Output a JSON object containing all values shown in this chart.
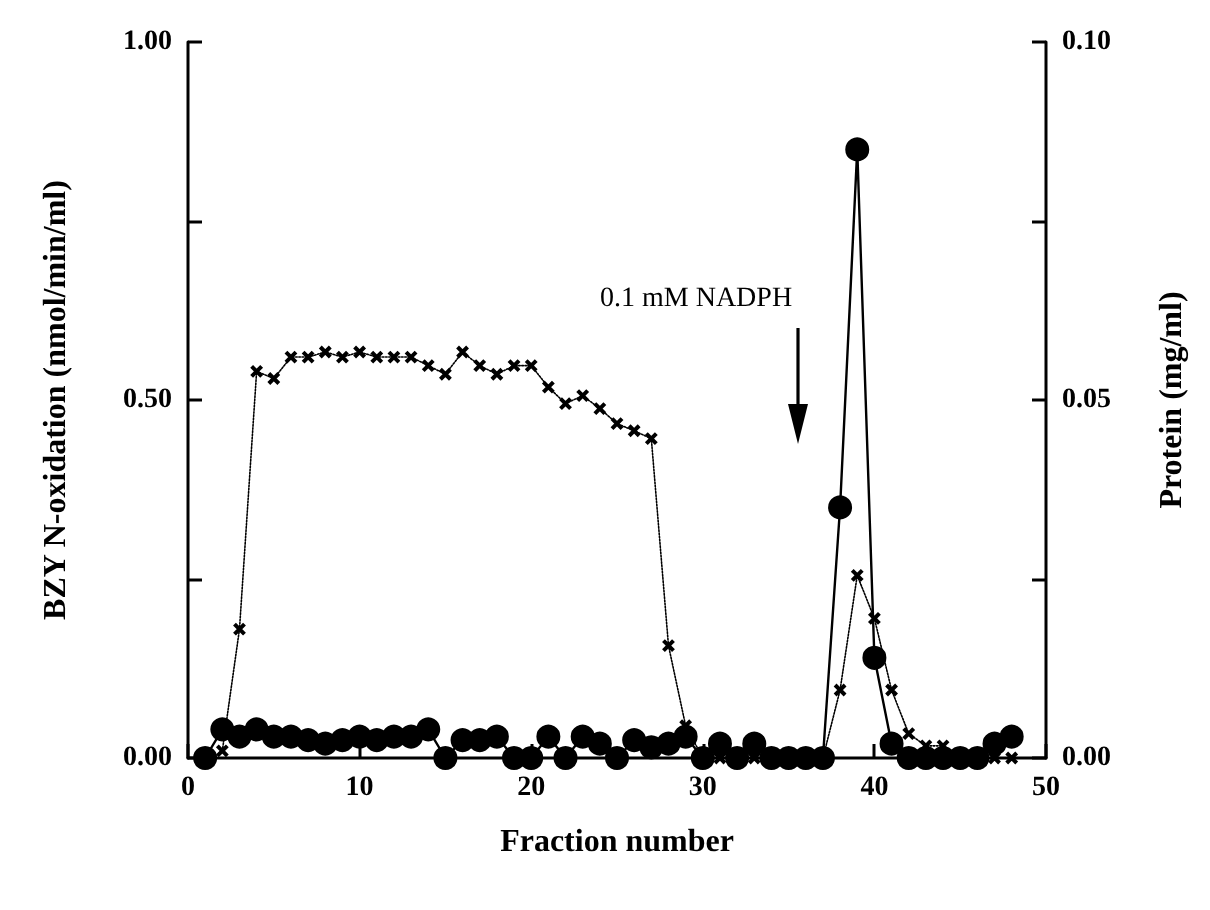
{
  "chart_data": {
    "type": "line",
    "xlabel": "Fraction number",
    "ylabel": "BZY N-oxidation (nmol/min/ml)",
    "y2label": "Protein (mg/ml)",
    "annotations": [
      "0.1 mM NADPH"
    ],
    "xlim": [
      0,
      50
    ],
    "xticks": [
      0,
      10,
      20,
      30,
      40,
      50
    ],
    "ylim": [
      0,
      1
    ],
    "yticks": [
      {
        "value": 0,
        "label": "0.00"
      },
      {
        "value": 0.25,
        "label": null
      },
      {
        "value": 0.5,
        "label": "0.50"
      },
      {
        "value": 0.75,
        "label": null
      },
      {
        "value": 1,
        "label": "1.00"
      }
    ],
    "y2lim": [
      0,
      0.1
    ],
    "y2ticks": [
      {
        "value": 0,
        "label": "0.00"
      },
      {
        "value": 0.025,
        "label": null
      },
      {
        "value": 0.05,
        "label": "0.05"
      },
      {
        "value": 0.075,
        "label": null
      },
      {
        "value": 0.1,
        "label": "0.10"
      }
    ],
    "series": [
      {
        "color": "#000000",
        "marker": "cross",
        "line_style": "dotted",
        "x": [
          2,
          3,
          4,
          5,
          6,
          7,
          8,
          9,
          10,
          11,
          12,
          13,
          14,
          15,
          16,
          17,
          18,
          19,
          20,
          21,
          22,
          23,
          24,
          25,
          26,
          27,
          28,
          29,
          30,
          31,
          32,
          33,
          34,
          35,
          36,
          37,
          38,
          39,
          40,
          41,
          42,
          43,
          44,
          45,
          46,
          47,
          48
        ],
        "values": [
          0.01,
          0.18,
          0.54,
          0.53,
          0.56,
          0.56,
          0.567,
          0.56,
          0.567,
          0.56,
          0.56,
          0.56,
          0.548,
          0.536,
          0.567,
          0.548,
          0.536,
          0.548,
          0.548,
          0.518,
          0.495,
          0.506,
          0.488,
          0.467,
          0.457,
          0.446,
          0.157,
          0.045,
          0,
          0,
          0,
          0,
          0,
          0,
          0,
          0,
          0.095,
          0.255,
          0.195,
          0.095,
          0.034,
          0.017,
          0.017,
          0,
          0,
          0,
          0
        ]
      },
      {
        "color": "#000000",
        "marker": "circle",
        "line_style": "solid",
        "axis": "y2",
        "x": [
          1,
          2,
          3,
          4,
          5,
          6,
          7,
          8,
          9,
          10,
          11,
          12,
          13,
          14,
          15,
          16,
          17,
          18,
          19,
          20,
          21,
          22,
          23,
          24,
          25,
          26,
          27,
          28,
          29,
          30,
          31,
          32,
          33,
          34,
          35,
          36,
          37,
          38,
          39,
          40,
          41,
          42,
          43,
          44,
          45,
          46,
          47,
          48
        ],
        "values": [
          0,
          0.004,
          0.003,
          0.004,
          0.003,
          0.003,
          0.0025,
          0.002,
          0.0025,
          0.003,
          0.0025,
          0.003,
          0.003,
          0.004,
          0,
          0.0025,
          0.0025,
          0.003,
          0,
          0,
          0.003,
          0,
          0.003,
          0.002,
          0,
          0.0025,
          0.0015,
          0.002,
          0.003,
          0,
          0.002,
          0,
          0.002,
          0,
          0,
          0,
          0,
          0.035,
          0.085,
          0.014,
          0.002,
          0,
          0,
          0,
          0,
          0,
          0.002,
          0.003
        ]
      }
    ]
  }
}
